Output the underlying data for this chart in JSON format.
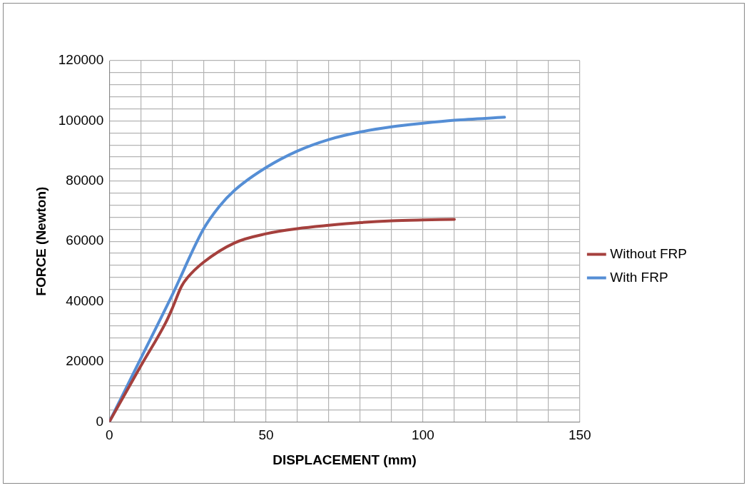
{
  "chart_data": {
    "type": "line",
    "xlabel": "DISPLACEMENT (mm)",
    "ylabel": "FORCE (Newton)",
    "xlim": [
      0,
      150
    ],
    "ylim": [
      0,
      120000
    ],
    "xticks": [
      0,
      {
        "value": 10,
        "label": null
      },
      {
        "value": 20,
        "label": null
      },
      {
        "value": 30,
        "label": null
      },
      {
        "value": 40,
        "label": null
      },
      50,
      {
        "value": 60,
        "label": null
      },
      {
        "value": 70,
        "label": null
      },
      {
        "value": 80,
        "label": null
      },
      {
        "value": 90,
        "label": null
      },
      100,
      {
        "value": 110,
        "label": null
      },
      {
        "value": 120,
        "label": null
      },
      {
        "value": 130,
        "label": null
      },
      {
        "value": 140,
        "label": null
      },
      150
    ],
    "yticks": [
      0,
      {
        "value": 4000,
        "label": null
      },
      {
        "value": 8000,
        "label": null
      },
      {
        "value": 12000,
        "label": null
      },
      {
        "value": 16000,
        "label": null
      },
      20000,
      {
        "value": 24000,
        "label": null
      },
      {
        "value": 28000,
        "label": null
      },
      {
        "value": 32000,
        "label": null
      },
      {
        "value": 36000,
        "label": null
      },
      40000,
      {
        "value": 44000,
        "label": null
      },
      {
        "value": 48000,
        "label": null
      },
      {
        "value": 52000,
        "label": null
      },
      {
        "value": 56000,
        "label": null
      },
      60000,
      {
        "value": 64000,
        "label": null
      },
      {
        "value": 68000,
        "label": null
      },
      {
        "value": 72000,
        "label": null
      },
      {
        "value": 76000,
        "label": null
      },
      80000,
      {
        "value": 84000,
        "label": null
      },
      {
        "value": 88000,
        "label": null
      },
      {
        "value": 92000,
        "label": null
      },
      {
        "value": 96000,
        "label": null
      },
      100000,
      {
        "value": 104000,
        "label": null
      },
      {
        "value": 108000,
        "label": null
      },
      {
        "value": 112000,
        "label": null
      },
      {
        "value": 116000,
        "label": null
      },
      120000
    ],
    "grid": true,
    "legend": "right",
    "marker": "none",
    "line_style": "solid",
    "series": [
      {
        "name": "Without FRP",
        "color": "#a5403d",
        "x": [
          0,
          10,
          18,
          20,
          23,
          25,
          30,
          40,
          50,
          60,
          70,
          80,
          90,
          100,
          110
        ],
        "values": [
          0,
          18500,
          33000,
          37500,
          45000,
          48000,
          53000,
          59500,
          62500,
          64200,
          65300,
          66200,
          66800,
          67100,
          67300
        ]
      },
      {
        "name": "With FRP",
        "color": "#558ed5",
        "x": [
          0,
          10,
          20,
          30,
          35,
          40,
          50,
          60,
          70,
          80,
          90,
          100,
          110,
          126
        ],
        "values": [
          0,
          21000,
          42000,
          64000,
          71500,
          77000,
          84500,
          90000,
          93800,
          96300,
          98000,
          99200,
          100200,
          101200
        ]
      }
    ]
  }
}
